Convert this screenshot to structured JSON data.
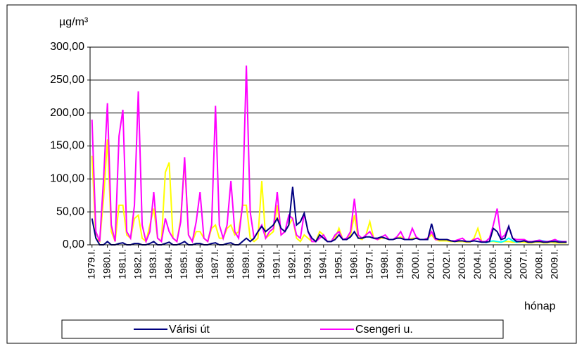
{
  "chart_data": {
    "type": "line",
    "y_label": "µg/m³",
    "x_label": "hónap",
    "categories": [
      "1979.I.",
      null,
      null,
      null,
      "1980.I.",
      null,
      null,
      null,
      "1981.I.",
      null,
      null,
      null,
      "1982.I.",
      null,
      null,
      null,
      "1983.I.",
      null,
      null,
      null,
      "1984.I.",
      null,
      null,
      null,
      "1985.I.",
      null,
      null,
      null,
      "1986.I.",
      null,
      null,
      null,
      "1987.I.",
      null,
      null,
      null,
      "1988.I.",
      null,
      null,
      null,
      "1989.I.",
      null,
      null,
      null,
      "1990.I.",
      null,
      null,
      null,
      "1991.I.",
      null,
      null,
      null,
      "1992.I.",
      null,
      null,
      null,
      "1993.I.",
      null,
      null,
      null,
      "1994.I.",
      null,
      null,
      null,
      "1995.I.",
      null,
      null,
      null,
      "1996.I.",
      null,
      null,
      null,
      "1997.I.",
      null,
      null,
      null,
      "1998.I.",
      null,
      null,
      null,
      "1999.I.",
      null,
      null,
      null,
      "2000.I.",
      null,
      null,
      null,
      "2001.I.",
      null,
      null,
      null,
      "2002.I.",
      null,
      null,
      null,
      "2003.I.",
      null,
      null,
      null,
      "2004.I.",
      null,
      null,
      null,
      "2005.I.",
      null,
      null,
      null,
      "2006.I.",
      null,
      null,
      null,
      "2007.I.",
      null,
      null,
      null,
      "2008.I.",
      null,
      null,
      null,
      "2009.I.",
      null,
      null,
      null
    ],
    "series": [
      {
        "color": "#ffff00",
        "values": [
          135,
          10,
          5,
          70,
          160,
          20,
          5,
          60,
          60,
          15,
          10,
          40,
          45,
          10,
          5,
          30,
          55,
          10,
          5,
          110,
          125,
          10,
          5,
          40,
          128,
          15,
          5,
          20,
          20,
          10,
          5,
          25,
          30,
          10,
          10,
          25,
          30,
          15,
          20,
          60,
          60,
          10,
          5,
          10,
          97,
          10,
          15,
          20,
          60,
          15,
          20,
          30,
          40,
          10,
          5,
          15,
          10,
          5,
          5,
          20,
          15,
          5,
          5,
          10,
          25,
          8,
          8,
          15,
          45,
          10,
          8,
          15,
          35,
          10,
          8,
          10,
          10,
          8,
          8,
          10,
          12,
          8,
          8,
          10,
          10,
          8,
          8,
          10,
          15,
          8,
          6,
          6,
          6,
          5,
          5,
          5,
          5,
          4,
          4,
          10,
          25,
          5,
          4,
          5,
          5,
          4,
          4,
          5,
          5,
          4,
          4,
          4,
          4,
          3,
          3,
          4,
          4,
          3,
          3,
          4,
          3,
          3,
          3,
          3
        ]
      },
      {
        "color": "#00ffff",
        "values": [
          null,
          null,
          null,
          null,
          null,
          null,
          null,
          null,
          null,
          null,
          null,
          null,
          null,
          null,
          null,
          null,
          null,
          null,
          null,
          null,
          null,
          null,
          null,
          null,
          null,
          null,
          null,
          null,
          null,
          null,
          null,
          null,
          null,
          null,
          null,
          null,
          null,
          null,
          null,
          null,
          null,
          null,
          null,
          null,
          null,
          null,
          null,
          null,
          null,
          null,
          null,
          null,
          null,
          null,
          null,
          null,
          null,
          null,
          null,
          null,
          null,
          null,
          null,
          null,
          null,
          null,
          null,
          null,
          null,
          null,
          null,
          null,
          null,
          null,
          null,
          null,
          null,
          null,
          null,
          null,
          null,
          null,
          null,
          null,
          null,
          null,
          null,
          null,
          null,
          null,
          null,
          null,
          null,
          null,
          null,
          null,
          null,
          null,
          null,
          null,
          null,
          null,
          3,
          5,
          6,
          5,
          4,
          6,
          10,
          6,
          4,
          5,
          6,
          5,
          5,
          6,
          7,
          6,
          5,
          6,
          7,
          6,
          5,
          5
        ]
      },
      {
        "name": "Csengeri u.",
        "color": "#ff00ff",
        "values": [
          190,
          20,
          5,
          100,
          215,
          30,
          5,
          165,
          205,
          20,
          10,
          60,
          233,
          30,
          5,
          20,
          80,
          10,
          5,
          40,
          20,
          10,
          5,
          35,
          133,
          15,
          5,
          35,
          80,
          10,
          5,
          30,
          211,
          30,
          10,
          30,
          97,
          20,
          10,
          60,
          272,
          50,
          10,
          20,
          30,
          10,
          20,
          25,
          80,
          15,
          20,
          45,
          40,
          15,
          10,
          48,
          20,
          5,
          5,
          10,
          15,
          5,
          5,
          15,
          20,
          8,
          10,
          20,
          70,
          15,
          10,
          15,
          20,
          10,
          8,
          12,
          15,
          8,
          8,
          12,
          20,
          8,
          8,
          25,
          12,
          8,
          8,
          10,
          20,
          8,
          8,
          8,
          8,
          6,
          6,
          8,
          10,
          5,
          5,
          8,
          10,
          5,
          5,
          10,
          30,
          55,
          10,
          15,
          28,
          10,
          8,
          8,
          8,
          5,
          5,
          6,
          7,
          5,
          5,
          6,
          8,
          5,
          5,
          5
        ]
      },
      {
        "name": "Várisi út",
        "color": "#000080",
        "values": [
          40,
          10,
          0,
          0,
          5,
          0,
          0,
          2,
          3,
          0,
          0,
          2,
          2,
          0,
          0,
          2,
          5,
          0,
          0,
          2,
          4,
          0,
          0,
          2,
          5,
          0,
          0,
          2,
          2,
          0,
          0,
          2,
          3,
          0,
          0,
          2,
          3,
          0,
          0,
          5,
          10,
          5,
          10,
          20,
          28,
          20,
          25,
          30,
          40,
          25,
          20,
          30,
          88,
          30,
          35,
          48,
          20,
          10,
          5,
          15,
          10,
          5,
          5,
          8,
          15,
          8,
          8,
          12,
          20,
          10,
          10,
          12,
          12,
          10,
          10,
          12,
          10,
          8,
          8,
          10,
          10,
          8,
          8,
          8,
          10,
          8,
          8,
          8,
          32,
          10,
          8,
          8,
          8,
          6,
          5,
          6,
          6,
          5,
          5,
          6,
          5,
          4,
          4,
          5,
          25,
          20,
          8,
          10,
          28,
          10,
          5,
          5,
          6,
          4,
          4,
          5,
          5,
          4,
          4,
          5,
          5,
          4,
          4,
          4
        ]
      }
    ],
    "ylim": [
      0,
      300
    ],
    "yticks": [
      {
        "value": 0,
        "label": "0,00"
      },
      {
        "value": 50,
        "label": "50,00"
      },
      {
        "value": 100,
        "label": "100,00"
      },
      {
        "value": 150,
        "label": "150,00"
      },
      {
        "value": 200,
        "label": "200,00"
      },
      {
        "value": 250,
        "label": "250,00"
      },
      {
        "value": 300,
        "label": "300,00"
      }
    ],
    "grid": true
  }
}
